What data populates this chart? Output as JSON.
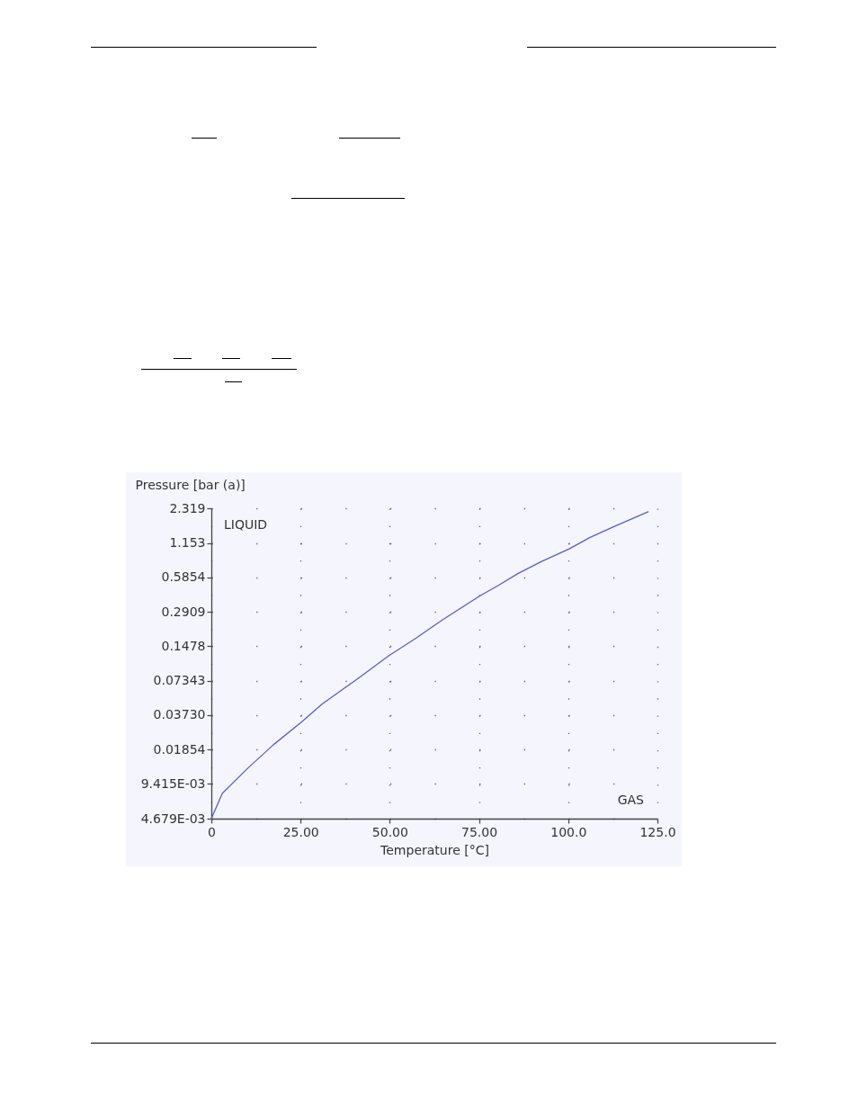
{
  "chart_data": {
    "type": "line",
    "xlabel": "Temperature [°C]",
    "ylabel": "Pressure [bar (a)]",
    "annotations": [
      "LIQUID",
      "GAS"
    ],
    "x": [
      0,
      3.1,
      10.3,
      17.4,
      25.3,
      31,
      41,
      49.6,
      57.4,
      64.6,
      75.3,
      80.3,
      86,
      92.4,
      100.3,
      106,
      113.1,
      122.4
    ],
    "values": [
      0.004679,
      0.00778,
      0.0129,
      0.0205,
      0.0323,
      0.0462,
      0.0768,
      0.121,
      0.173,
      0.247,
      0.403,
      0.494,
      0.631,
      0.797,
      1.03,
      1.29,
      1.62,
      2.16
    ],
    "color": "#5b5bd6",
    "xlim": [
      0,
      125
    ],
    "ylim": [
      0.004679,
      2.319
    ],
    "xticks": [
      0,
      {
        "value": 25,
        "label": "25.00"
      },
      {
        "value": 50,
        "label": "50.00"
      },
      {
        "value": 75,
        "label": "75.00"
      },
      {
        "value": 100,
        "label": "100.0"
      },
      {
        "value": 125,
        "label": "125.0"
      }
    ],
    "yticks": [
      {
        "value": 0.004679,
        "label": "4.679E-03"
      },
      {
        "value": 0.009415,
        "label": "9.415E-03"
      },
      0.01854,
      {
        "value": 0.0373,
        "label": "0.03730"
      },
      0.07343,
      0.1478,
      0.2909,
      0.5854,
      1.153,
      2.319
    ],
    "log": "y",
    "grid": true
  }
}
